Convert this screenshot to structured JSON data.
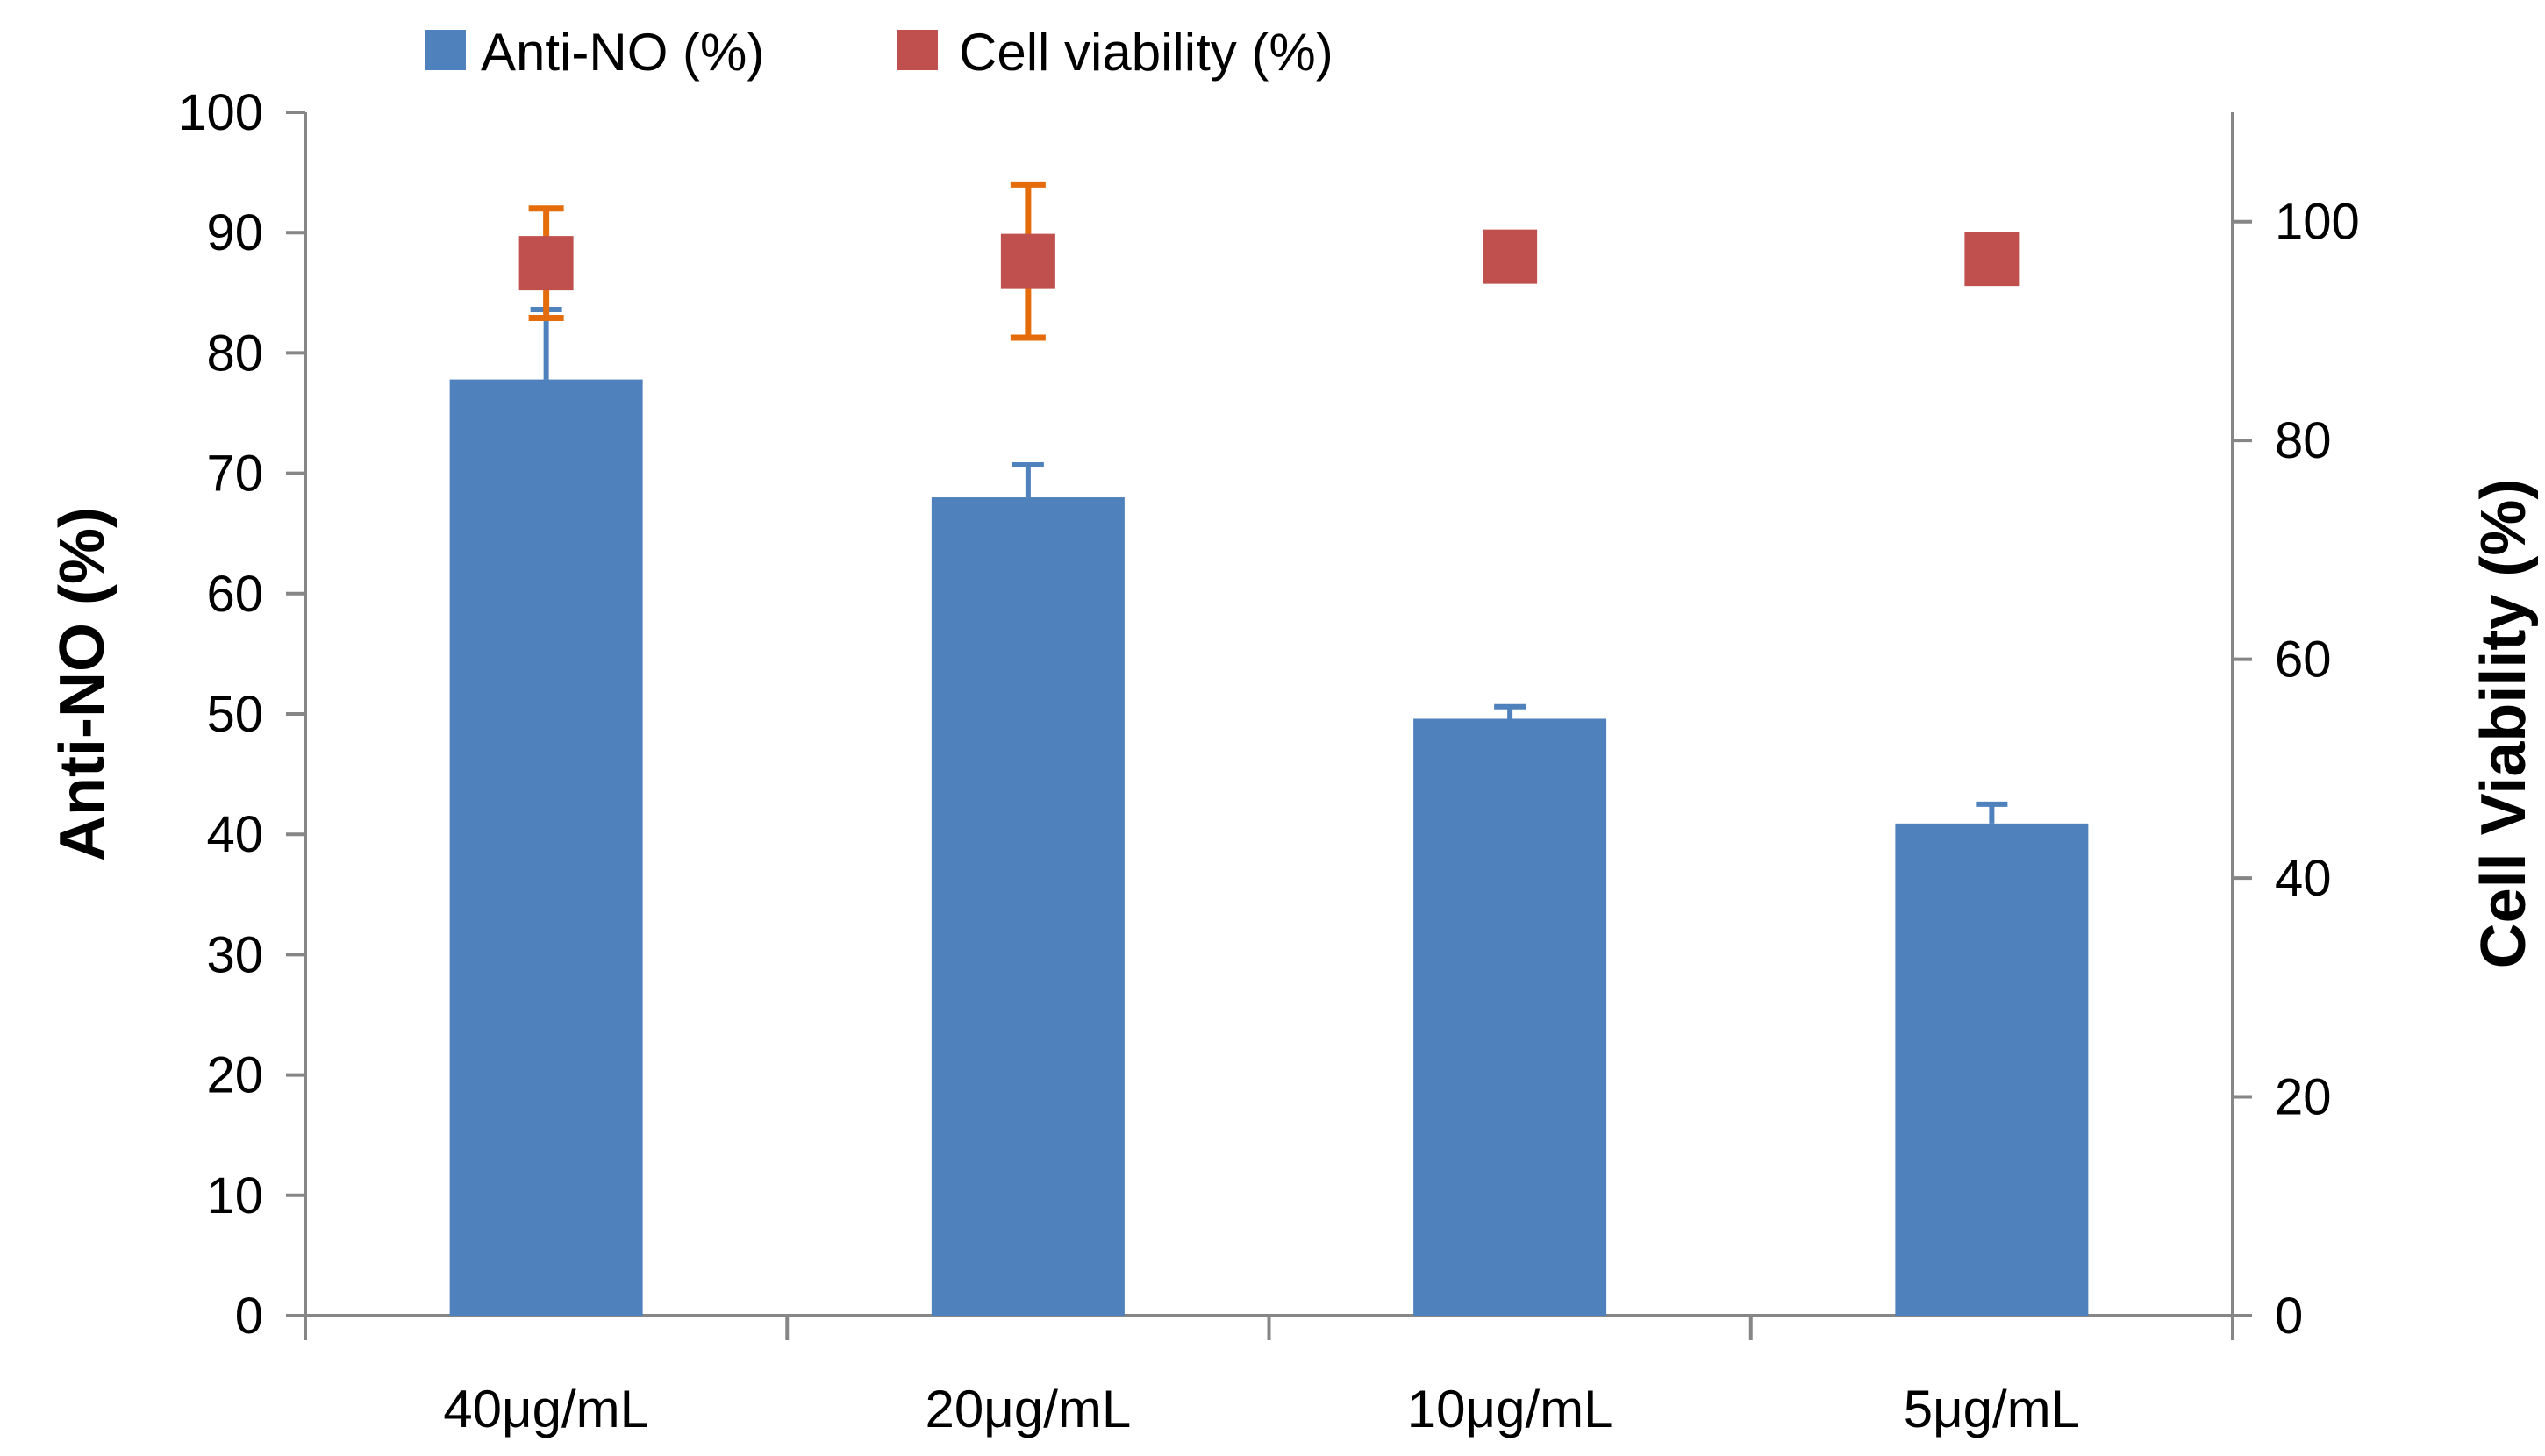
{
  "chart_data": {
    "type": "bar",
    "title": "",
    "categories": [
      "40μg/mL",
      "20μg/mL",
      "10μg/mL",
      "5μg/mL"
    ],
    "xlabel": "",
    "ylabel": "Anti-NO (%)",
    "ylabel_right": "Cell Viability (%)",
    "ylim": [
      0,
      100
    ],
    "ylim_right": [
      0,
      110
    ],
    "yticks": [
      "0",
      "10",
      "20",
      "30",
      "40",
      "50",
      "60",
      "70",
      "80",
      "90",
      "100"
    ],
    "yticks_right": [
      "0",
      "20",
      "40",
      "60",
      "80",
      "100"
    ],
    "legend_position": "top",
    "grid": false,
    "series": [
      {
        "name": "Anti-NO (%)",
        "type": "bar",
        "axis": "left",
        "color": "#4F81BD",
        "values": [
          77.8,
          68.0,
          49.6,
          40.9
        ],
        "errors": [
          5.8,
          2.7,
          1.0,
          1.6
        ]
      },
      {
        "name": "Cell viability (%)",
        "type": "scatter",
        "axis": "right",
        "color": "#C0504D",
        "error_color": "#E46C0A",
        "values": [
          96.2,
          96.4,
          96.8,
          96.6
        ],
        "errors": [
          5.0,
          7.0,
          0.3,
          1.6
        ]
      }
    ]
  }
}
